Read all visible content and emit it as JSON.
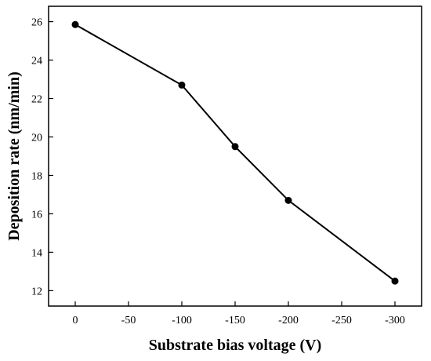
{
  "chart_data": {
    "type": "line",
    "title": "",
    "xlabel": "Substrate bias voltage (V)",
    "ylabel": "Deposition rate (nm/min)",
    "x": [
      0,
      -100,
      -150,
      -200,
      -300
    ],
    "series": [
      {
        "values": [
          25.85,
          22.7,
          19.5,
          16.7,
          12.5
        ]
      }
    ],
    "xlim": [
      25,
      -325
    ],
    "ylim": [
      11.2,
      26.8
    ],
    "xticks": [
      0,
      -50,
      -100,
      -150,
      -200,
      -250,
      -300
    ],
    "xtick_labels": [
      "0",
      "-50",
      "-100",
      "-150",
      "-200",
      "-250",
      "-300"
    ],
    "yticks": [
      12,
      14,
      16,
      18,
      20,
      22,
      24,
      26
    ],
    "ytick_labels": [
      "12",
      "14",
      "16",
      "18",
      "20",
      "22",
      "24",
      "26"
    ],
    "grid": false,
    "legend": "none",
    "line_color": "#000000",
    "marker_color": "#000000"
  }
}
